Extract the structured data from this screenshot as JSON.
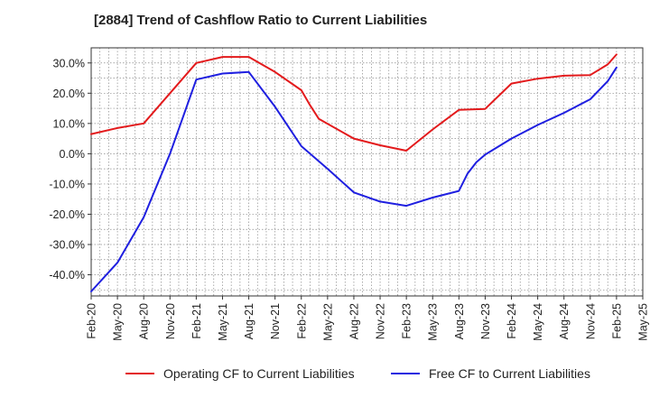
{
  "chart_data": {
    "type": "line",
    "title": "[2884]  Trend of Cashflow Ratio to Current Liabilities",
    "xlabel": "",
    "ylabel": "",
    "x": [
      "Feb-20",
      "May-20",
      "Aug-20",
      "Nov-20",
      "Feb-21",
      "May-21",
      "Aug-21",
      "Nov-21",
      "Feb-22",
      "May-22",
      "Aug-22",
      "Nov-22",
      "Feb-23",
      "May-23",
      "Aug-23",
      "Nov-23",
      "Feb-24",
      "May-24",
      "Aug-24",
      "Nov-24",
      "Feb-25",
      "May-25"
    ],
    "ylim": [
      -47,
      35
    ],
    "yticks": [
      -40,
      -30,
      -20,
      -10,
      0,
      10,
      20,
      30
    ],
    "ytick_labels": [
      "-40.0%",
      "-30.0%",
      "-20.0%",
      "-10.0%",
      "0.0%",
      "10.0%",
      "20.0%",
      "30.0%"
    ],
    "grid": true,
    "legend_position": "bottom",
    "series": [
      {
        "name": "Operating CF to Current Liabilities",
        "color": "#e31a1c",
        "points": [
          {
            "x": "Feb-20",
            "y": 6.5
          },
          {
            "x": "May-20",
            "y": 8.5
          },
          {
            "x": "Aug-20",
            "y": 10.0
          },
          {
            "x": "Nov-20",
            "y": 20.0
          },
          {
            "x": "Feb-21",
            "y": 30.0
          },
          {
            "x": "May-21",
            "y": 32.0
          },
          {
            "x": "Aug-21",
            "y": 32.0
          },
          {
            "x": "Nov-21",
            "y": 27.0
          },
          {
            "x": "Feb-22",
            "y": 21.0
          },
          {
            "x": "Mar-22",
            "y": 16.0
          },
          {
            "x": "Apr-22",
            "y": 11.5
          },
          {
            "x": "Aug-22",
            "y": 5.0
          },
          {
            "x": "Nov-22",
            "y": 2.8
          },
          {
            "x": "Feb-23",
            "y": 1.0
          },
          {
            "x": "May-23",
            "y": 8.0
          },
          {
            "x": "Aug-23",
            "y": 14.5
          },
          {
            "x": "Nov-23",
            "y": 14.8
          },
          {
            "x": "Feb-24",
            "y": 23.2
          },
          {
            "x": "May-24",
            "y": 24.8
          },
          {
            "x": "Aug-24",
            "y": 25.8
          },
          {
            "x": "Nov-24",
            "y": 26.0
          },
          {
            "x": "Jan-25",
            "y": 29.5
          },
          {
            "x": "Feb-25",
            "y": 32.8
          }
        ]
      },
      {
        "name": "Free CF to Current Liabilities",
        "color": "#1f1fe0",
        "points": [
          {
            "x": "Feb-20",
            "y": -45.5
          },
          {
            "x": "May-20",
            "y": -36.0
          },
          {
            "x": "Aug-20",
            "y": -21.0
          },
          {
            "x": "Nov-20",
            "y": 0.0
          },
          {
            "x": "Feb-21",
            "y": 24.5
          },
          {
            "x": "May-21",
            "y": 26.5
          },
          {
            "x": "Aug-21",
            "y": 27.0
          },
          {
            "x": "Nov-21",
            "y": 15.5
          },
          {
            "x": "Feb-22",
            "y": 2.5
          },
          {
            "x": "May-22",
            "y": -5.0
          },
          {
            "x": "Aug-22",
            "y": -12.8
          },
          {
            "x": "Nov-22",
            "y": -15.8
          },
          {
            "x": "Feb-23",
            "y": -17.2
          },
          {
            "x": "May-23",
            "y": -14.5
          },
          {
            "x": "Aug-23",
            "y": -12.3
          },
          {
            "x": "Sep-23",
            "y": -6.5
          },
          {
            "x": "Oct-23",
            "y": -2.8
          },
          {
            "x": "Nov-23",
            "y": -0.3
          },
          {
            "x": "Feb-24",
            "y": 5.0
          },
          {
            "x": "May-24",
            "y": 9.5
          },
          {
            "x": "Aug-24",
            "y": 13.5
          },
          {
            "x": "Nov-24",
            "y": 18.0
          },
          {
            "x": "Jan-25",
            "y": 24.0
          },
          {
            "x": "Feb-25",
            "y": 28.5
          }
        ]
      }
    ]
  }
}
